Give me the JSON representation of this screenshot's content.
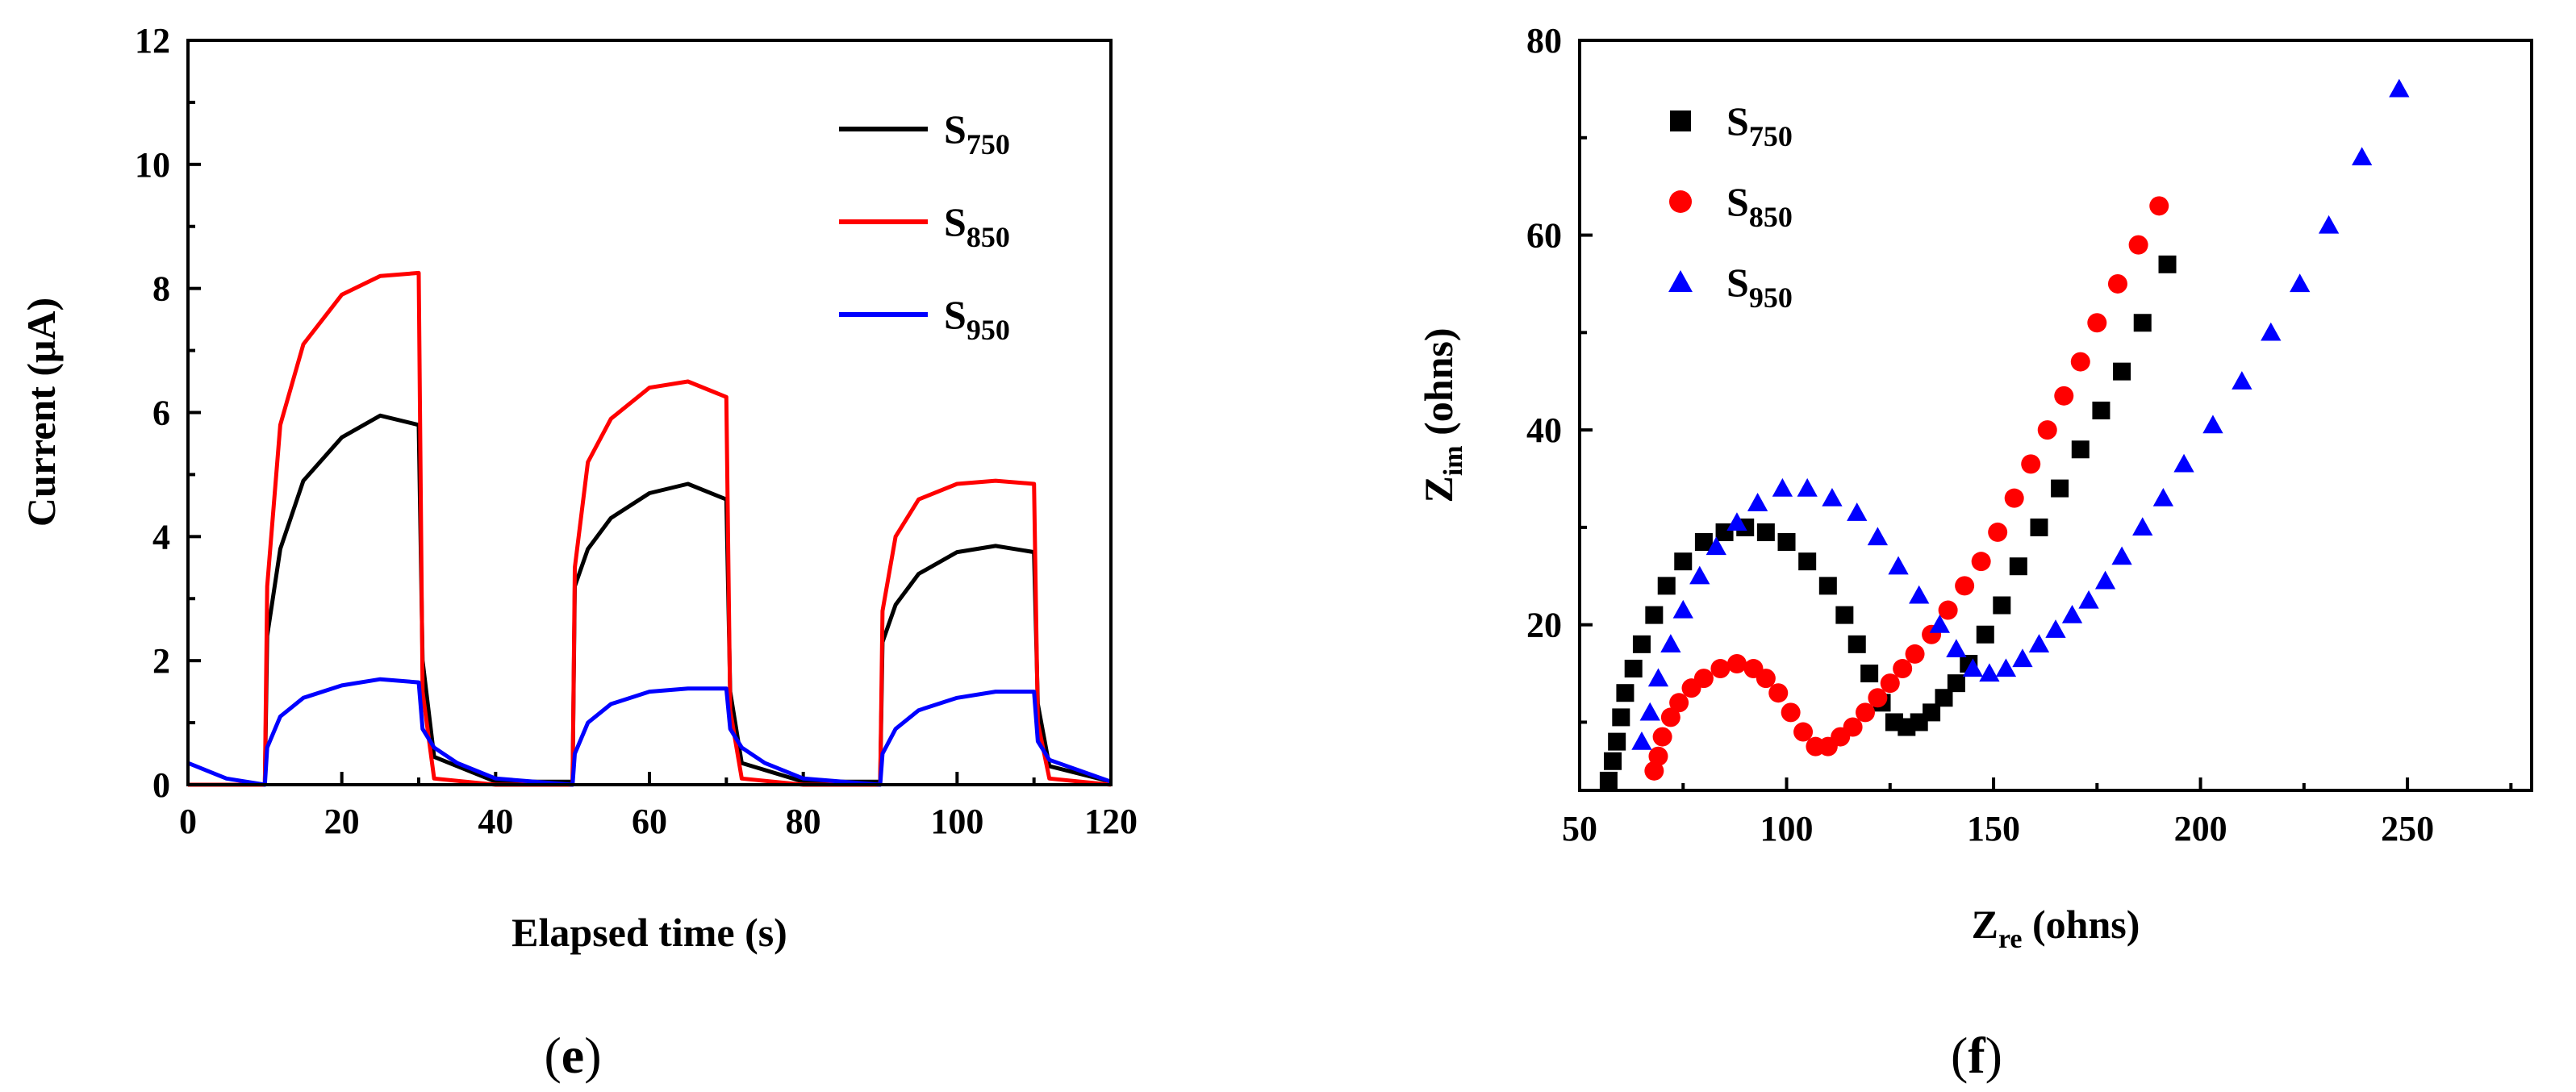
{
  "panels": {
    "left_label": "(e)",
    "left_label_letter": "e",
    "right_label": "(f)",
    "right_label_letter": "f"
  },
  "chart_data": [
    {
      "type": "line",
      "xlabel": "Elapsed time (s)",
      "ylabel": "Current (μA)",
      "xlim": [
        0,
        120
      ],
      "ylim": [
        0,
        12
      ],
      "xticks": [
        0,
        20,
        40,
        60,
        80,
        100,
        120
      ],
      "yticks": [
        0,
        2,
        4,
        6,
        8,
        10,
        12
      ],
      "legend_position": "top-right",
      "series": [
        {
          "name": "S750",
          "label_base": "S",
          "label_sub": "750",
          "color": "#000000",
          "x": [
            0,
            10,
            10.3,
            12,
            15,
            20,
            25,
            30,
            30.5,
            32,
            40,
            50,
            50.3,
            52,
            55,
            60,
            65,
            70,
            70.5,
            72,
            80,
            90,
            90.3,
            92,
            95,
            100,
            105,
            110,
            110.5,
            112,
            120
          ],
          "y": [
            0,
            0,
            2.4,
            3.8,
            4.9,
            5.6,
            5.95,
            5.8,
            2.0,
            0.45,
            0.05,
            0.05,
            3.2,
            3.8,
            4.3,
            4.7,
            4.85,
            4.6,
            1.5,
            0.35,
            0.05,
            0.05,
            2.3,
            2.9,
            3.4,
            3.75,
            3.85,
            3.75,
            1.3,
            0.3,
            0.05
          ]
        },
        {
          "name": "S850",
          "label_base": "S",
          "label_sub": "850",
          "color": "#ff0000",
          "x": [
            0,
            10,
            10.3,
            12,
            15,
            20,
            25,
            30,
            30.5,
            32,
            40,
            50,
            50.3,
            52,
            55,
            60,
            65,
            70,
            70.5,
            72,
            80,
            90,
            90.3,
            92,
            95,
            100,
            105,
            110,
            110.5,
            112,
            120
          ],
          "y": [
            0,
            0,
            3.2,
            5.8,
            7.1,
            7.9,
            8.2,
            8.25,
            1.5,
            0.1,
            0.0,
            0.0,
            3.5,
            5.2,
            5.9,
            6.4,
            6.5,
            6.25,
            1.2,
            0.1,
            0.0,
            0.0,
            2.8,
            4.0,
            4.6,
            4.85,
            4.9,
            4.85,
            1.0,
            0.1,
            0.0
          ]
        },
        {
          "name": "S950",
          "label_base": "S",
          "label_sub": "950",
          "color": "#0000ff",
          "x": [
            0,
            5,
            10,
            10.3,
            12,
            15,
            20,
            25,
            30,
            30.5,
            32,
            35,
            40,
            50,
            50.3,
            52,
            55,
            60,
            65,
            70,
            70.5,
            72,
            75,
            80,
            90,
            90.3,
            92,
            95,
            100,
            105,
            110,
            110.5,
            112,
            120
          ],
          "y": [
            0.35,
            0.1,
            0,
            0.6,
            1.1,
            1.4,
            1.6,
            1.7,
            1.65,
            0.9,
            0.6,
            0.35,
            0.1,
            0,
            0.5,
            1.0,
            1.3,
            1.5,
            1.55,
            1.55,
            0.9,
            0.6,
            0.35,
            0.1,
            0,
            0.5,
            0.9,
            1.2,
            1.4,
            1.5,
            1.5,
            0.7,
            0.4,
            0.05
          ]
        }
      ]
    },
    {
      "type": "scatter",
      "xlabel_base": "Z",
      "xlabel_sub": "re",
      "xlabel_rest": " (ohns)",
      "ylabel_base": "Z",
      "ylabel_sub": "im",
      "ylabel_rest": " (ohns)",
      "xlim": [
        50,
        280
      ],
      "ylim": [
        3,
        80
      ],
      "xticks": [
        50,
        100,
        150,
        200,
        250
      ],
      "yticks": [
        20,
        40,
        60,
        80
      ],
      "legend_position": "top-left",
      "series": [
        {
          "name": "S750",
          "label_base": "S",
          "label_sub": "750",
          "color": "#000000",
          "marker": "square",
          "x": [
            57,
            58,
            59,
            60,
            61,
            63,
            65,
            68,
            71,
            75,
            80,
            85,
            90,
            95,
            100,
            105,
            110,
            114,
            117,
            120,
            123,
            126,
            129,
            132,
            135,
            138,
            141,
            144,
            148,
            152,
            156,
            161,
            166,
            171,
            176,
            181,
            186,
            192
          ],
          "y": [
            4,
            6,
            8,
            10.5,
            13,
            15.5,
            18,
            21,
            24,
            26.5,
            28.5,
            29.5,
            30,
            29.5,
            28.5,
            26.5,
            24,
            21,
            18,
            15,
            12,
            10,
            9.5,
            10,
            11,
            12.5,
            14,
            16,
            19,
            22,
            26,
            30,
            34,
            38,
            42,
            46,
            51,
            57
          ]
        },
        {
          "name": "S850",
          "label_base": "S",
          "label_sub": "850",
          "color": "#ff0000",
          "marker": "circle",
          "x": [
            68,
            69,
            70,
            72,
            74,
            77,
            80,
            84,
            88,
            92,
            95,
            98,
            101,
            104,
            107,
            110,
            113,
            116,
            119,
            122,
            125,
            128,
            131,
            135,
            139,
            143,
            147,
            151,
            155,
            159,
            163,
            167,
            171,
            175,
            180,
            185,
            190
          ],
          "y": [
            5,
            6.5,
            8.5,
            10.5,
            12,
            13.5,
            14.5,
            15.5,
            16,
            15.5,
            14.5,
            13,
            11,
            9,
            7.5,
            7.5,
            8.5,
            9.5,
            11,
            12.5,
            14,
            15.5,
            17,
            19,
            21.5,
            24,
            26.5,
            29.5,
            33,
            36.5,
            40,
            43.5,
            47,
            51,
            55,
            59,
            63
          ]
        },
        {
          "name": "S950",
          "label_base": "S",
          "label_sub": "950",
          "color": "#0000ff",
          "marker": "triangle",
          "x": [
            65,
            67,
            69,
            72,
            75,
            79,
            83,
            88,
            93,
            99,
            105,
            111,
            117,
            122,
            127,
            132,
            137,
            141,
            145,
            149,
            153,
            157,
            161,
            165,
            169,
            173,
            177,
            181,
            186,
            191,
            196,
            203,
            210,
            217,
            224,
            231,
            239,
            248
          ],
          "y": [
            8,
            11,
            14.5,
            18,
            21.5,
            25,
            28,
            30.5,
            32.5,
            34,
            34,
            33,
            31.5,
            29,
            26,
            23,
            20,
            17.5,
            15.5,
            15,
            15.5,
            16.5,
            18,
            19.5,
            21,
            22.5,
            24.5,
            27,
            30,
            33,
            36.5,
            40.5,
            45,
            50,
            55,
            61,
            68,
            75
          ]
        }
      ]
    }
  ]
}
